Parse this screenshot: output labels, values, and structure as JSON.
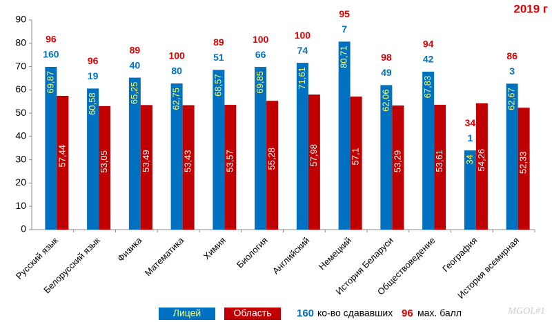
{
  "chart_data": {
    "type": "bar",
    "title": "2019 г",
    "categories": [
      "Русский язык",
      "Белорусский язык",
      "Физика",
      "Математика",
      "Химия",
      "Биология",
      "Английский",
      "Немецкий",
      "История Беларуси",
      "Обществоведение",
      "География",
      "История всемирная"
    ],
    "series": [
      {
        "name": "Лицей",
        "color": "#0070c0",
        "label_color": "#ffff66",
        "values": [
          69.87,
          60.58,
          65.25,
          62.75,
          68.57,
          69.85,
          71.61,
          80.71,
          62.06,
          67.83,
          34,
          62.67
        ],
        "value_labels": [
          "69,87",
          "60,58",
          "65,25",
          "62,75",
          "68,57",
          "69,85",
          "71,61",
          "80,71",
          "62,06",
          "67,83",
          "34",
          "62,67"
        ]
      },
      {
        "name": "Область",
        "color": "#c00000",
        "label_color": "#ffffff",
        "values": [
          57.44,
          53.05,
          53.49,
          53.43,
          53.57,
          55.28,
          57.98,
          57.1,
          53.29,
          53.61,
          54.26,
          52.33
        ],
        "value_labels": [
          "57,44",
          "53,05",
          "53,49",
          "53,43",
          "53,57",
          "55,28",
          "57,98",
          "57,1",
          "53,29",
          "53,61",
          "54,26",
          "52,33"
        ]
      }
    ],
    "participants": [
      160,
      19,
      40,
      80,
      51,
      66,
      74,
      7,
      49,
      42,
      1,
      3
    ],
    "max_scores": [
      96,
      96,
      89,
      100,
      89,
      100,
      100,
      95,
      98,
      94,
      34,
      86
    ],
    "legend_notes": [
      {
        "number": 160,
        "text": "ко-во сдававших",
        "color": "#0070c0"
      },
      {
        "number": 96,
        "text": "мах. балл",
        "color": "#e00000"
      }
    ],
    "watermark": "MGOL#1",
    "ylim": [
      0,
      90
    ],
    "yticks": [
      0,
      10,
      20,
      30,
      40,
      50,
      60,
      70,
      80,
      90
    ],
    "grid": false
  }
}
